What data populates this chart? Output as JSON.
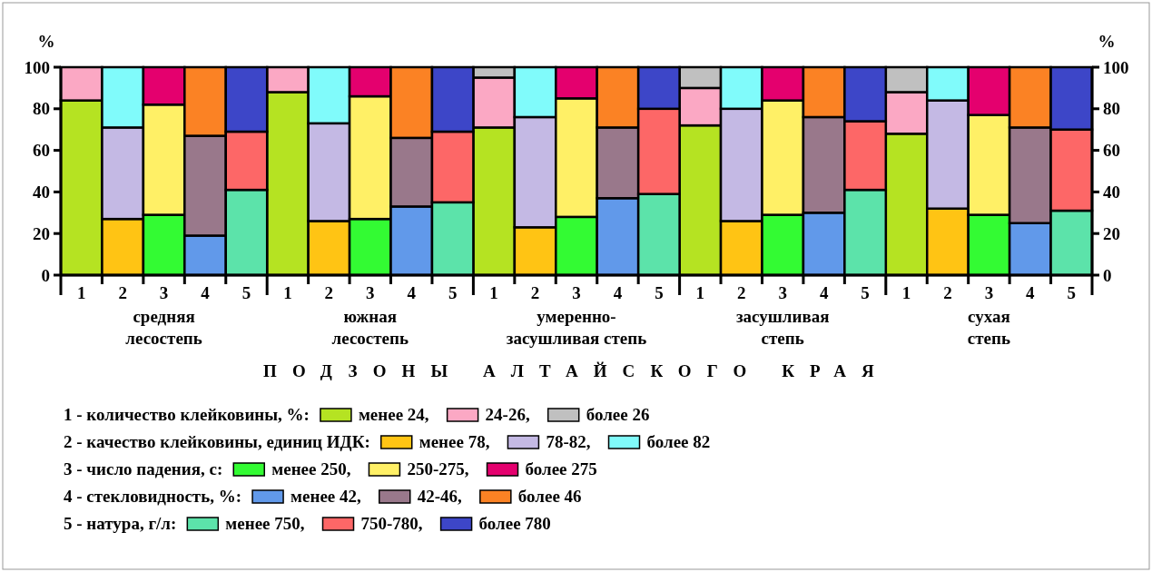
{
  "chart_data": {
    "type": "bar",
    "stacked": true,
    "ylabel": "%",
    "y2label": "%",
    "xlabel": "ПОДЗОНЫ АЛТАЙСКОГО КРАЯ",
    "categories": [
      "1",
      "2",
      "3",
      "4",
      "5",
      "1",
      "2",
      "3",
      "4",
      "5",
      "1",
      "2",
      "3",
      "4",
      "5",
      "1",
      "2",
      "3",
      "4",
      "5",
      "1",
      "2",
      "3",
      "4",
      "5"
    ],
    "ylim": [
      0,
      100
    ],
    "yticks": [
      0,
      20,
      40,
      60,
      80,
      100
    ],
    "y2lim": [
      0,
      100
    ],
    "y2ticks": [
      0,
      20,
      40,
      60,
      80,
      100
    ],
    "legend": "bottom",
    "annotations": [
      "средняя\nлесостепь",
      "южная\nлесостепь",
      "умеренно-\nзасушливая степь",
      "засушливая\nстепь",
      "сухая\nстепь",
      "1 - количество клейковины, %:",
      "2 - качество клейковины, единиц ИДК:",
      "3 - число падения, с:",
      "4 - стекловидность, %:",
      "5 - натура, г/л:"
    ],
    "series": [
      {
        "name": "менее 24,",
        "color": "#b5e322",
        "values": [
          84,
          null,
          null,
          null,
          null,
          88,
          null,
          null,
          null,
          null,
          71,
          null,
          null,
          null,
          null,
          72,
          null,
          null,
          null,
          null,
          68,
          null,
          null,
          null,
          null
        ]
      },
      {
        "name": "24-26,",
        "color": "#fba8c4",
        "values": [
          16,
          null,
          null,
          null,
          null,
          12,
          null,
          null,
          null,
          null,
          24,
          null,
          null,
          null,
          null,
          18,
          null,
          null,
          null,
          null,
          20,
          null,
          null,
          null,
          null
        ]
      },
      {
        "name": "более 26",
        "color": "#c0c0c0",
        "values": [
          null,
          null,
          null,
          null,
          null,
          null,
          null,
          null,
          null,
          null,
          5,
          null,
          null,
          null,
          null,
          10,
          null,
          null,
          null,
          null,
          12,
          null,
          null,
          null,
          null
        ]
      },
      {
        "name": "менее 78,",
        "color": "#ffc414",
        "values": [
          null,
          27,
          null,
          null,
          null,
          null,
          26,
          null,
          null,
          null,
          null,
          23,
          null,
          null,
          null,
          null,
          26,
          null,
          null,
          null,
          null,
          32,
          null,
          null,
          null
        ]
      },
      {
        "name": "78-82,",
        "color": "#c4b9e4",
        "values": [
          null,
          44,
          null,
          null,
          null,
          null,
          47,
          null,
          null,
          null,
          null,
          53,
          null,
          null,
          null,
          null,
          54,
          null,
          null,
          null,
          null,
          52,
          null,
          null,
          null
        ]
      },
      {
        "name": "более 82",
        "color": "#80fbfb",
        "values": [
          null,
          29,
          null,
          null,
          null,
          null,
          27,
          null,
          null,
          null,
          null,
          24,
          null,
          null,
          null,
          null,
          20,
          null,
          null,
          null,
          null,
          16,
          null,
          null,
          null
        ]
      },
      {
        "name": "менее 250,",
        "color": "#33fb33",
        "values": [
          null,
          null,
          29,
          null,
          null,
          null,
          null,
          27,
          null,
          null,
          null,
          null,
          28,
          null,
          null,
          null,
          null,
          29,
          null,
          null,
          null,
          null,
          29,
          null,
          null
        ]
      },
      {
        "name": "250-275,",
        "color": "#fff066",
        "values": [
          null,
          null,
          53,
          null,
          null,
          null,
          null,
          59,
          null,
          null,
          null,
          null,
          57,
          null,
          null,
          null,
          null,
          55,
          null,
          null,
          null,
          null,
          48,
          null,
          null
        ]
      },
      {
        "name": "более 275",
        "color": "#e4006e",
        "values": [
          null,
          null,
          18,
          null,
          null,
          null,
          null,
          14,
          null,
          null,
          null,
          null,
          15,
          null,
          null,
          null,
          null,
          16,
          null,
          null,
          null,
          null,
          23,
          null,
          null
        ]
      },
      {
        "name": "менее 42,",
        "color": "#6199ea",
        "values": [
          null,
          null,
          null,
          19,
          null,
          null,
          null,
          null,
          33,
          null,
          null,
          null,
          null,
          37,
          null,
          null,
          null,
          null,
          30,
          null,
          null,
          null,
          null,
          25,
          null
        ]
      },
      {
        "name": "42-46,",
        "color": "#99788b",
        "values": [
          null,
          null,
          null,
          48,
          null,
          null,
          null,
          null,
          33,
          null,
          null,
          null,
          null,
          34,
          null,
          null,
          null,
          null,
          46,
          null,
          null,
          null,
          null,
          46,
          null
        ]
      },
      {
        "name": "более 46",
        "color": "#fb8224",
        "values": [
          null,
          null,
          null,
          33,
          null,
          null,
          null,
          null,
          34,
          null,
          null,
          null,
          null,
          29,
          null,
          null,
          null,
          null,
          24,
          null,
          null,
          null,
          null,
          29,
          null
        ]
      },
      {
        "name": "менее 750,",
        "color": "#5ce3aa",
        "values": [
          null,
          null,
          null,
          null,
          41,
          null,
          null,
          null,
          null,
          35,
          null,
          null,
          null,
          null,
          39,
          null,
          null,
          null,
          null,
          41,
          null,
          null,
          null,
          null,
          31
        ]
      },
      {
        "name": "750-780,",
        "color": "#fd6767",
        "values": [
          null,
          null,
          null,
          null,
          28,
          null,
          null,
          null,
          null,
          34,
          null,
          null,
          null,
          null,
          41,
          null,
          null,
          null,
          null,
          33,
          null,
          null,
          null,
          null,
          39
        ]
      },
      {
        "name": "более 780",
        "color": "#3d46c8",
        "values": [
          null,
          null,
          null,
          null,
          31,
          null,
          null,
          null,
          null,
          31,
          null,
          null,
          null,
          null,
          20,
          null,
          null,
          null,
          null,
          26,
          null,
          null,
          null,
          null,
          30
        ]
      }
    ]
  }
}
